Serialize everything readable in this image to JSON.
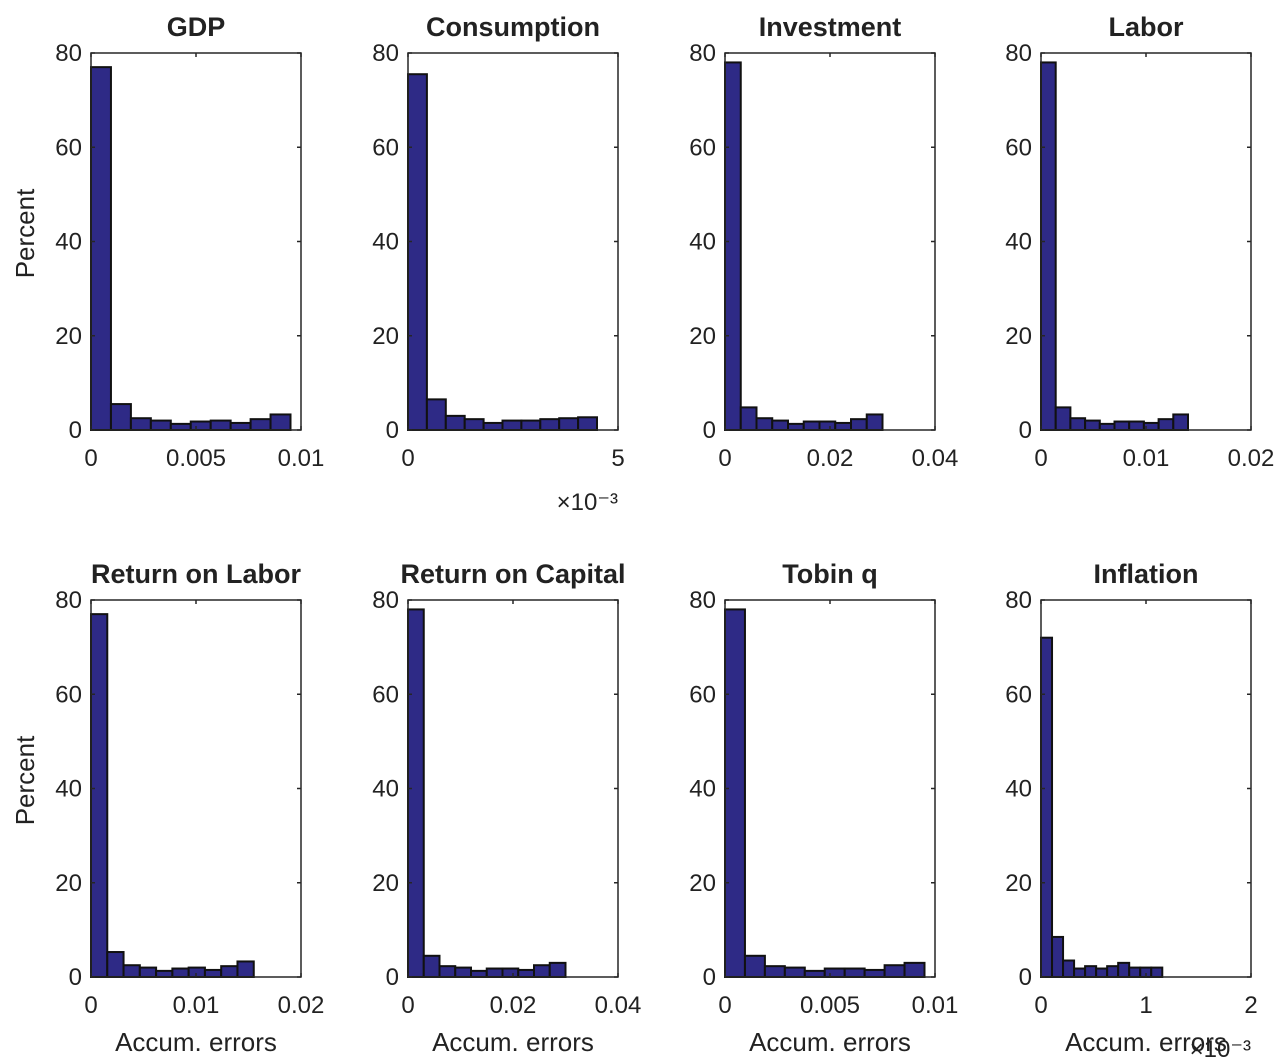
{
  "colors": {
    "bar": "#2e2a86",
    "edge": "#111111",
    "axes": "#262626",
    "text": "#222222"
  },
  "chart_data": [
    {
      "type": "bar",
      "title": "GDP",
      "xlabel": "",
      "ylabel": "Percent",
      "x_exponent": "",
      "xlim": [
        0,
        0.01
      ],
      "ylim": [
        0,
        80
      ],
      "xticks": [
        0,
        0.005,
        0.01
      ],
      "xticklabels": [
        "0",
        "0.005",
        "0.01"
      ],
      "yticks": [
        0,
        20,
        40,
        60,
        80
      ],
      "yticklabels": [
        "0",
        "20",
        "40",
        "60",
        "80"
      ],
      "bin_edges": [
        0,
        0.00095,
        0.0019,
        0.00285,
        0.0038,
        0.00475,
        0.0057,
        0.00665,
        0.0076,
        0.00855,
        0.0095
      ],
      "values": [
        77,
        5.5,
        2.5,
        2,
        1.3,
        1.8,
        2,
        1.5,
        2.3,
        3.3
      ]
    },
    {
      "type": "bar",
      "title": "Consumption",
      "xlabel": "",
      "ylabel": "",
      "x_exponent": "×10⁻³",
      "xlim": [
        0,
        5
      ],
      "ylim": [
        0,
        80
      ],
      "xticks": [
        0,
        5
      ],
      "xticklabels": [
        "0",
        "5"
      ],
      "yticks": [
        0,
        20,
        40,
        60,
        80
      ],
      "yticklabels": [
        "0",
        "20",
        "40",
        "60",
        "80"
      ],
      "bin_edges": [
        0,
        0.45,
        0.9,
        1.35,
        1.8,
        2.25,
        2.7,
        3.15,
        3.6,
        4.05,
        4.5
      ],
      "values": [
        75.5,
        6.5,
        3,
        2.3,
        1.5,
        2,
        2,
        2.3,
        2.5,
        2.7
      ]
    },
    {
      "type": "bar",
      "title": "Investment",
      "xlabel": "",
      "ylabel": "",
      "x_exponent": "",
      "xlim": [
        0,
        0.04
      ],
      "ylim": [
        0,
        80
      ],
      "xticks": [
        0,
        0.02,
        0.04
      ],
      "xticklabels": [
        "0",
        "0.02",
        "0.04"
      ],
      "yticks": [
        0,
        20,
        40,
        60,
        80
      ],
      "yticklabels": [
        "0",
        "20",
        "40",
        "60",
        "80"
      ],
      "bin_edges": [
        0,
        0.003,
        0.006,
        0.009,
        0.012,
        0.015,
        0.018,
        0.021,
        0.024,
        0.027,
        0.03
      ],
      "values": [
        78,
        4.8,
        2.5,
        2,
        1.3,
        1.8,
        1.8,
        1.5,
        2.3,
        3.3
      ]
    },
    {
      "type": "bar",
      "title": "Labor",
      "xlabel": "",
      "ylabel": "",
      "x_exponent": "",
      "xlim": [
        0,
        0.02
      ],
      "ylim": [
        0,
        80
      ],
      "xticks": [
        0,
        0.01,
        0.02
      ],
      "xticklabels": [
        "0",
        "0.01",
        "0.02"
      ],
      "yticks": [
        0,
        20,
        40,
        60,
        80
      ],
      "yticklabels": [
        "0",
        "20",
        "40",
        "60",
        "80"
      ],
      "bin_edges": [
        0,
        0.0014,
        0.0028,
        0.0042,
        0.0056,
        0.007,
        0.0084,
        0.0098,
        0.0112,
        0.0126,
        0.014
      ],
      "values": [
        78,
        4.8,
        2.5,
        2,
        1.3,
        1.8,
        1.8,
        1.5,
        2.3,
        3.3
      ]
    },
    {
      "type": "bar",
      "title": "Return on Labor",
      "xlabel": "Accum. errors",
      "ylabel": "Percent",
      "x_exponent": "",
      "xlim": [
        0,
        0.02
      ],
      "ylim": [
        0,
        80
      ],
      "xticks": [
        0,
        0.01,
        0.02
      ],
      "xticklabels": [
        "0",
        "0.01",
        "0.02"
      ],
      "yticks": [
        0,
        20,
        40,
        60,
        80
      ],
      "yticklabels": [
        "0",
        "20",
        "40",
        "60",
        "80"
      ],
      "bin_edges": [
        0,
        0.00155,
        0.0031,
        0.00465,
        0.0062,
        0.00775,
        0.0093,
        0.01085,
        0.0124,
        0.01395,
        0.0155
      ],
      "values": [
        77,
        5.3,
        2.5,
        2,
        1.3,
        1.8,
        2,
        1.5,
        2.3,
        3.3
      ]
    },
    {
      "type": "bar",
      "title": "Return on Capital",
      "xlabel": "Accum. errors",
      "ylabel": "",
      "x_exponent": "",
      "xlim": [
        0,
        0.04
      ],
      "ylim": [
        0,
        80
      ],
      "xticks": [
        0,
        0.02,
        0.04
      ],
      "xticklabels": [
        "0",
        "0.02",
        "0.04"
      ],
      "yticks": [
        0,
        20,
        40,
        60,
        80
      ],
      "yticklabels": [
        "0",
        "20",
        "40",
        "60",
        "80"
      ],
      "bin_edges": [
        0,
        0.003,
        0.006,
        0.009,
        0.012,
        0.015,
        0.018,
        0.021,
        0.024,
        0.027,
        0.03
      ],
      "values": [
        78,
        4.5,
        2.3,
        2,
        1.3,
        1.8,
        1.8,
        1.5,
        2.5,
        3
      ]
    },
    {
      "type": "bar",
      "title": "Tobin q",
      "xlabel": "Accum. errors",
      "ylabel": "",
      "x_exponent": "",
      "xlim": [
        0,
        0.01
      ],
      "ylim": [
        0,
        80
      ],
      "xticks": [
        0,
        0.005,
        0.01
      ],
      "xticklabels": [
        "0",
        "0.005",
        "0.01"
      ],
      "yticks": [
        0,
        20,
        40,
        60,
        80
      ],
      "yticklabels": [
        "0",
        "20",
        "40",
        "60",
        "80"
      ],
      "bin_edges": [
        0,
        0.00095,
        0.0019,
        0.00285,
        0.0038,
        0.00475,
        0.0057,
        0.00665,
        0.0076,
        0.00855,
        0.0095
      ],
      "values": [
        78,
        4.5,
        2.3,
        2,
        1.3,
        1.8,
        1.8,
        1.5,
        2.5,
        3
      ]
    },
    {
      "type": "bar",
      "title": "Inflation",
      "xlabel": "Accum. errors",
      "ylabel": "",
      "x_exponent": "×10⁻³",
      "xlim": [
        0,
        2
      ],
      "ylim": [
        0,
        80
      ],
      "xticks": [
        0,
        1,
        2
      ],
      "xticklabels": [
        "0",
        "1",
        "2"
      ],
      "yticks": [
        0,
        20,
        40,
        60,
        80
      ],
      "yticklabels": [
        "0",
        "20",
        "40",
        "60",
        "80"
      ],
      "bin_edges": [
        0,
        0.105,
        0.21,
        0.315,
        0.42,
        0.525,
        0.63,
        0.735,
        0.84,
        0.945,
        1.05,
        1.155
      ],
      "values": [
        72,
        8.5,
        3.5,
        1.8,
        2.3,
        1.8,
        2.3,
        3,
        2,
        2,
        2
      ]
    }
  ]
}
